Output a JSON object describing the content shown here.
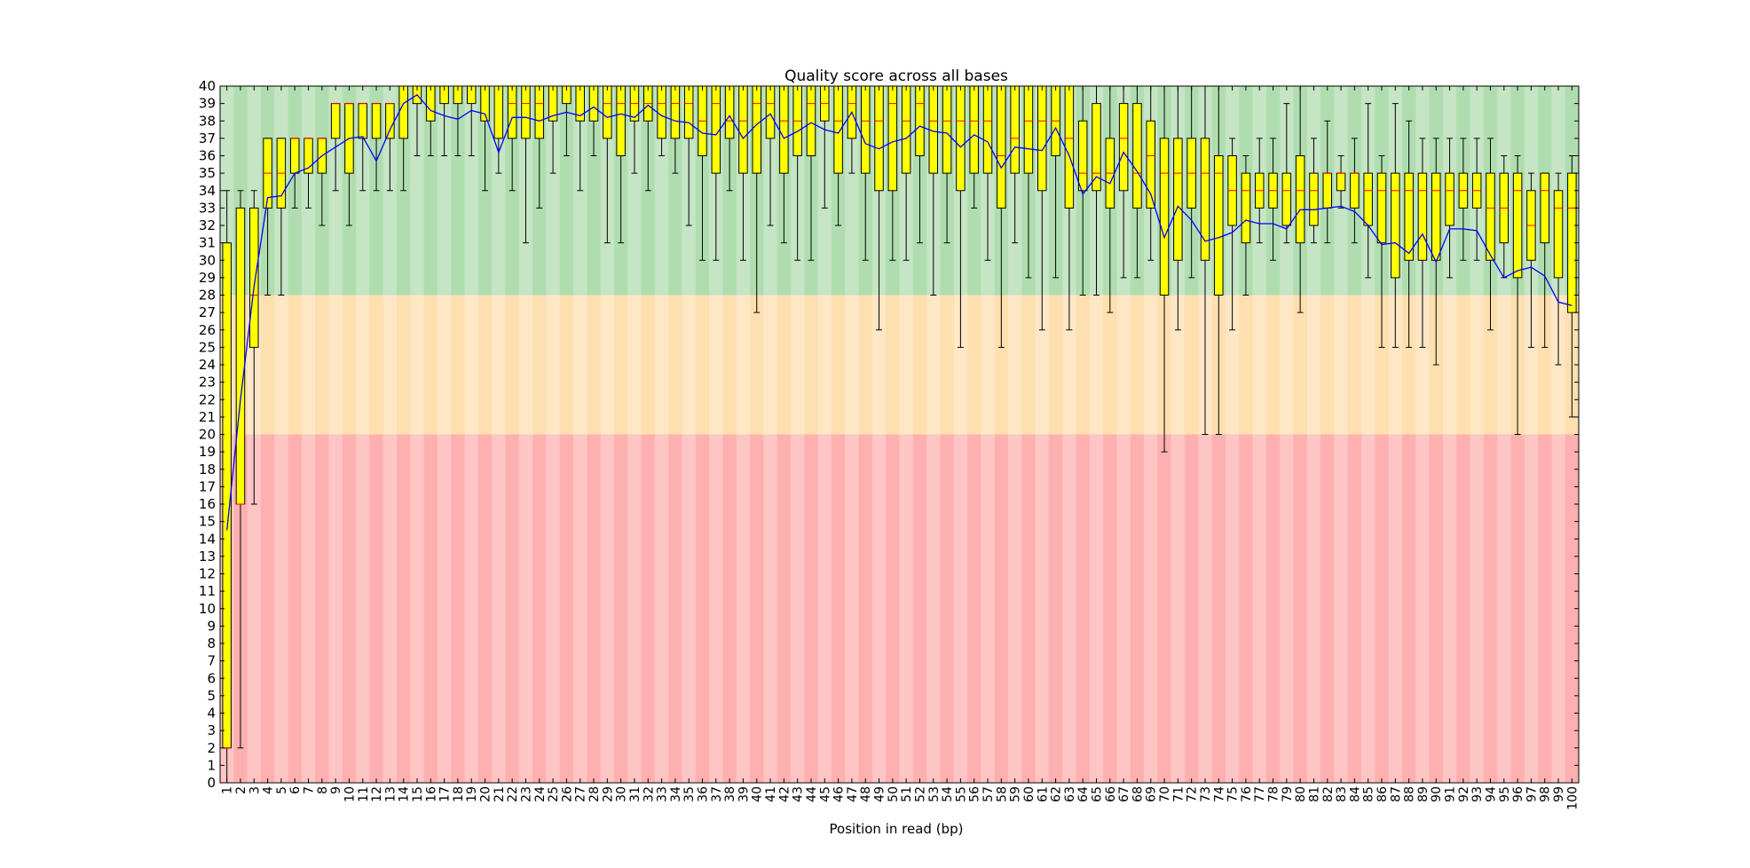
{
  "chart_data": {
    "type": "boxplot",
    "title": "Quality score across all bases",
    "xlabel": "Position in read (bp)",
    "ylabel": "",
    "ylim": [
      0,
      40
    ],
    "y_ticks": [
      0,
      1,
      2,
      3,
      4,
      5,
      6,
      7,
      8,
      9,
      10,
      11,
      12,
      13,
      14,
      15,
      16,
      17,
      18,
      19,
      20,
      21,
      22,
      23,
      24,
      25,
      26,
      27,
      28,
      29,
      30,
      31,
      32,
      33,
      34,
      35,
      36,
      37,
      38,
      39,
      40
    ],
    "quality_zones": [
      {
        "from": 28,
        "to": 40,
        "colors": [
          "#c5e5c5",
          "#b0ddb0"
        ]
      },
      {
        "from": 20,
        "to": 28,
        "colors": [
          "#fee7c5",
          "#fedfb0"
        ]
      },
      {
        "from": 0,
        "to": 20,
        "colors": [
          "#fec5c5",
          "#feb0b0"
        ]
      }
    ],
    "colors": {
      "box": "#ffff00",
      "median": "#ff0000",
      "mean_line": "#0000ff",
      "whisker": "#000000"
    },
    "x_tick_labels": [
      "1",
      "2",
      "3",
      "4",
      "5",
      "6",
      "7",
      "8",
      "9",
      "10",
      "11",
      "12",
      "13",
      "14",
      "15",
      "16",
      "17",
      "18",
      "19",
      "20",
      "21",
      "22",
      "23",
      "24",
      "25",
      "26",
      "27",
      "28",
      "29",
      "30",
      "31",
      "32",
      "33",
      "34",
      "35",
      "36",
      "37",
      "38",
      "39",
      "40",
      "41",
      "42",
      "43",
      "44",
      "45",
      "46",
      "47",
      "48",
      "49",
      "50",
      "51",
      "52",
      "53",
      "54",
      "55",
      "56",
      "57",
      "58",
      "59",
      "60",
      "61",
      "62",
      "63",
      "64",
      "65",
      "66",
      "67",
      "68",
      "69",
      "70",
      "71",
      "72",
      "73",
      "74",
      "75",
      "76",
      "77",
      "78",
      "79",
      "80",
      "81",
      "82",
      "83",
      "84",
      "85",
      "86",
      "87",
      "88",
      "89",
      "90",
      "91",
      "92",
      "93",
      "94",
      "95",
      "96",
      "97",
      "98",
      "99",
      "100"
    ],
    "positions": [
      {
        "q1": 2,
        "median": 2,
        "q3": 31,
        "whislo": 0,
        "whishi": 34,
        "mean": 14.5
      },
      {
        "q1": 16,
        "median": 16,
        "q3": 33,
        "whislo": 2,
        "whishi": 34,
        "mean": 22
      },
      {
        "q1": 25,
        "median": 28,
        "q3": 33,
        "whislo": 16,
        "whishi": 34,
        "mean": 28.5
      },
      {
        "q1": 33,
        "median": 35,
        "q3": 37,
        "whislo": 28,
        "whishi": 37,
        "mean": 33.6
      },
      {
        "q1": 33,
        "median": 35,
        "q3": 37,
        "whislo": 28,
        "whishi": 37,
        "mean": 33.7
      },
      {
        "q1": 35,
        "median": 37,
        "q3": 37,
        "whislo": 33,
        "whishi": 37,
        "mean": 35
      },
      {
        "q1": 35,
        "median": 37,
        "q3": 37,
        "whislo": 33,
        "whishi": 37,
        "mean": 35.3
      },
      {
        "q1": 35,
        "median": 37,
        "q3": 37,
        "whislo": 32,
        "whishi": 37,
        "mean": 36
      },
      {
        "q1": 37,
        "median": 39,
        "q3": 39,
        "whislo": 34,
        "whishi": 39,
        "mean": 36.5
      },
      {
        "q1": 35,
        "median": 39,
        "q3": 39,
        "whislo": 32,
        "whishi": 39,
        "mean": 37
      },
      {
        "q1": 37,
        "median": 39,
        "q3": 39,
        "whislo": 34,
        "whishi": 39,
        "mean": 37.1
      },
      {
        "q1": 37,
        "median": 39,
        "q3": 39,
        "whislo": 34,
        "whishi": 39,
        "mean": 35.7
      },
      {
        "q1": 37,
        "median": 39,
        "q3": 39,
        "whislo": 34,
        "whishi": 39,
        "mean": 37.5
      },
      {
        "q1": 37,
        "median": 40,
        "q3": 40,
        "whislo": 34,
        "whishi": 40,
        "mean": 39
      },
      {
        "q1": 39,
        "median": 40,
        "q3": 40,
        "whislo": 36,
        "whishi": 40,
        "mean": 39.5
      },
      {
        "q1": 38,
        "median": 40,
        "q3": 40,
        "whislo": 36,
        "whishi": 40,
        "mean": 38.6
      },
      {
        "q1": 39,
        "median": 40,
        "q3": 40,
        "whislo": 36,
        "whishi": 40,
        "mean": 38.3
      },
      {
        "q1": 39,
        "median": 40,
        "q3": 40,
        "whislo": 36,
        "whishi": 40,
        "mean": 38.1
      },
      {
        "q1": 39,
        "median": 40,
        "q3": 40,
        "whislo": 36,
        "whishi": 40,
        "mean": 38.6
      },
      {
        "q1": 38,
        "median": 40,
        "q3": 40,
        "whislo": 34,
        "whishi": 40,
        "mean": 38.4
      },
      {
        "q1": 37,
        "median": 40,
        "q3": 40,
        "whislo": 35,
        "whishi": 40,
        "mean": 36.2
      },
      {
        "q1": 37,
        "median": 39,
        "q3": 40,
        "whislo": 34,
        "whishi": 40,
        "mean": 38.2
      },
      {
        "q1": 37,
        "median": 39,
        "q3": 40,
        "whislo": 31,
        "whishi": 40,
        "mean": 38.2
      },
      {
        "q1": 37,
        "median": 39,
        "q3": 40,
        "whislo": 33,
        "whishi": 40,
        "mean": 38
      },
      {
        "q1": 38,
        "median": 40,
        "q3": 40,
        "whislo": 35,
        "whishi": 40,
        "mean": 38.3
      },
      {
        "q1": 39,
        "median": 40,
        "q3": 40,
        "whislo": 36,
        "whishi": 40,
        "mean": 38.5
      },
      {
        "q1": 38,
        "median": 40,
        "q3": 40,
        "whislo": 34,
        "whishi": 40,
        "mean": 38.3
      },
      {
        "q1": 38,
        "median": 40,
        "q3": 40,
        "whislo": 36,
        "whishi": 40,
        "mean": 38.8
      },
      {
        "q1": 37,
        "median": 39,
        "q3": 40,
        "whislo": 31,
        "whishi": 40,
        "mean": 38.2
      },
      {
        "q1": 36,
        "median": 39,
        "q3": 40,
        "whislo": 31,
        "whishi": 40,
        "mean": 38.4
      },
      {
        "q1": 38,
        "median": 39,
        "q3": 40,
        "whislo": 35,
        "whishi": 40,
        "mean": 38.2
      },
      {
        "q1": 38,
        "median": 39,
        "q3": 40,
        "whislo": 34,
        "whishi": 40,
        "mean": 38.9
      },
      {
        "q1": 37,
        "median": 39,
        "q3": 40,
        "whislo": 36,
        "whishi": 40,
        "mean": 38.3
      },
      {
        "q1": 37,
        "median": 39,
        "q3": 40,
        "whislo": 35,
        "whishi": 40,
        "mean": 38
      },
      {
        "q1": 37,
        "median": 39,
        "q3": 40,
        "whislo": 32,
        "whishi": 40,
        "mean": 37.9
      },
      {
        "q1": 36,
        "median": 38,
        "q3": 40,
        "whislo": 30,
        "whishi": 40,
        "mean": 37.3
      },
      {
        "q1": 35,
        "median": 39,
        "q3": 40,
        "whislo": 30,
        "whishi": 40,
        "mean": 37.2
      },
      {
        "q1": 37,
        "median": 38,
        "q3": 40,
        "whislo": 34,
        "whishi": 40,
        "mean": 38.3
      },
      {
        "q1": 35,
        "median": 38,
        "q3": 40,
        "whislo": 30,
        "whishi": 40,
        "mean": 37
      },
      {
        "q1": 35,
        "median": 39,
        "q3": 40,
        "whislo": 27,
        "whishi": 40,
        "mean": 37.8
      },
      {
        "q1": 37,
        "median": 39,
        "q3": 40,
        "whislo": 32,
        "whishi": 40,
        "mean": 38.4
      },
      {
        "q1": 35,
        "median": 38,
        "q3": 40,
        "whislo": 31,
        "whishi": 40,
        "mean": 37
      },
      {
        "q1": 36,
        "median": 38,
        "q3": 40,
        "whislo": 30,
        "whishi": 40,
        "mean": 37.4
      },
      {
        "q1": 36,
        "median": 39,
        "q3": 40,
        "whislo": 30,
        "whishi": 40,
        "mean": 37.9
      },
      {
        "q1": 38,
        "median": 39,
        "q3": 40,
        "whislo": 33,
        "whishi": 40,
        "mean": 37.5
      },
      {
        "q1": 35,
        "median": 38,
        "q3": 40,
        "whislo": 32,
        "whishi": 40,
        "mean": 37.3
      },
      {
        "q1": 37,
        "median": 39,
        "q3": 40,
        "whislo": 35,
        "whishi": 40,
        "mean": 38.5
      },
      {
        "q1": 35,
        "median": 38,
        "q3": 40,
        "whislo": 30,
        "whishi": 40,
        "mean": 36.7
      },
      {
        "q1": 34,
        "median": 38,
        "q3": 40,
        "whislo": 26,
        "whishi": 40,
        "mean": 36.4
      },
      {
        "q1": 34,
        "median": 39,
        "q3": 40,
        "whislo": 30,
        "whishi": 40,
        "mean": 36.8
      },
      {
        "q1": 35,
        "median": 38,
        "q3": 40,
        "whislo": 30,
        "whishi": 40,
        "mean": 37
      },
      {
        "q1": 36,
        "median": 39,
        "q3": 40,
        "whislo": 31,
        "whishi": 40,
        "mean": 37.7
      },
      {
        "q1": 35,
        "median": 38,
        "q3": 40,
        "whislo": 28,
        "whishi": 40,
        "mean": 37.4
      },
      {
        "q1": 35,
        "median": 38,
        "q3": 40,
        "whislo": 31,
        "whishi": 40,
        "mean": 37.3
      },
      {
        "q1": 34,
        "median": 38,
        "q3": 40,
        "whislo": 25,
        "whishi": 40,
        "mean": 36.5
      },
      {
        "q1": 35,
        "median": 38,
        "q3": 40,
        "whislo": 33,
        "whishi": 40,
        "mean": 37.2
      },
      {
        "q1": 35,
        "median": 38,
        "q3": 40,
        "whislo": 30,
        "whishi": 40,
        "mean": 36.8
      },
      {
        "q1": 33,
        "median": 36,
        "q3": 40,
        "whislo": 25,
        "whishi": 40,
        "mean": 35.3
      },
      {
        "q1": 35,
        "median": 37,
        "q3": 40,
        "whislo": 31,
        "whishi": 40,
        "mean": 36.5
      },
      {
        "q1": 35,
        "median": 38,
        "q3": 40,
        "whislo": 29,
        "whishi": 40,
        "mean": 36.4
      },
      {
        "q1": 34,
        "median": 38,
        "q3": 40,
        "whislo": 26,
        "whishi": 40,
        "mean": 36.3
      },
      {
        "q1": 36,
        "median": 38,
        "q3": 40,
        "whislo": 29,
        "whishi": 40,
        "mean": 37.6
      },
      {
        "q1": 33,
        "median": 37,
        "q3": 40,
        "whislo": 26,
        "whishi": 40,
        "mean": 36
      },
      {
        "q1": 34,
        "median": 35,
        "q3": 38,
        "whislo": 28,
        "whishi": 40,
        "mean": 33.8
      },
      {
        "q1": 34,
        "median": 35,
        "q3": 39,
        "whislo": 28,
        "whishi": 40,
        "mean": 34.8
      },
      {
        "q1": 33,
        "median": 35,
        "q3": 37,
        "whislo": 27,
        "whishi": 40,
        "mean": 34.4
      },
      {
        "q1": 34,
        "median": 37,
        "q3": 39,
        "whislo": 29,
        "whishi": 40,
        "mean": 36.2
      },
      {
        "q1": 33,
        "median": 35,
        "q3": 39,
        "whislo": 29,
        "whishi": 40,
        "mean": 35.1
      },
      {
        "q1": 33,
        "median": 36,
        "q3": 38,
        "whislo": 30,
        "whishi": 40,
        "mean": 33.8
      },
      {
        "q1": 28,
        "median": 35,
        "q3": 37,
        "whislo": 19,
        "whishi": 40,
        "mean": 31.3
      },
      {
        "q1": 30,
        "median": 35,
        "q3": 37,
        "whislo": 26,
        "whishi": 40,
        "mean": 33.1
      },
      {
        "q1": 33,
        "median": 35,
        "q3": 37,
        "whislo": 29,
        "whishi": 40,
        "mean": 32.3
      },
      {
        "q1": 30,
        "median": 35,
        "q3": 37,
        "whislo": 20,
        "whishi": 40,
        "mean": 31.1
      },
      {
        "q1": 28,
        "median": 35,
        "q3": 36,
        "whislo": 20,
        "whishi": 40,
        "mean": 31.3
      },
      {
        "q1": 32,
        "median": 34,
        "q3": 36,
        "whislo": 26,
        "whishi": 37,
        "mean": 31.6
      },
      {
        "q1": 31,
        "median": 34,
        "q3": 35,
        "whislo": 28,
        "whishi": 36,
        "mean": 32.3
      },
      {
        "q1": 33,
        "median": 34,
        "q3": 35,
        "whislo": 31,
        "whishi": 37,
        "mean": 32.1
      },
      {
        "q1": 33,
        "median": 34,
        "q3": 35,
        "whislo": 30,
        "whishi": 37,
        "mean": 32.1
      },
      {
        "q1": 32,
        "median": 34,
        "q3": 35,
        "whislo": 31,
        "whishi": 39,
        "mean": 31.8
      },
      {
        "q1": 31,
        "median": 34,
        "q3": 36,
        "whislo": 27,
        "whishi": 40,
        "mean": 32.9
      },
      {
        "q1": 32,
        "median": 34,
        "q3": 35,
        "whislo": 31,
        "whishi": 37,
        "mean": 32.9
      },
      {
        "q1": 33,
        "median": 35,
        "q3": 35,
        "whislo": 31,
        "whishi": 38,
        "mean": 33
      },
      {
        "q1": 34,
        "median": 35,
        "q3": 35,
        "whislo": 33,
        "whishi": 36,
        "mean": 33.1
      },
      {
        "q1": 33,
        "median": 35,
        "q3": 35,
        "whislo": 31,
        "whishi": 37,
        "mean": 32.8
      },
      {
        "q1": 32,
        "median": 34,
        "q3": 35,
        "whislo": 29,
        "whishi": 39,
        "mean": 32
      },
      {
        "q1": 31,
        "median": 34,
        "q3": 35,
        "whislo": 25,
        "whishi": 36,
        "mean": 30.9
      },
      {
        "q1": 29,
        "median": 34,
        "q3": 35,
        "whislo": 25,
        "whishi": 39,
        "mean": 31
      },
      {
        "q1": 30,
        "median": 34,
        "q3": 35,
        "whislo": 25,
        "whishi": 38,
        "mean": 30.4
      },
      {
        "q1": 30,
        "median": 34,
        "q3": 35,
        "whislo": 25,
        "whishi": 37,
        "mean": 31.5
      },
      {
        "q1": 30,
        "median": 34,
        "q3": 35,
        "whislo": 24,
        "whishi": 37,
        "mean": 29.9
      },
      {
        "q1": 32,
        "median": 34,
        "q3": 35,
        "whislo": 29,
        "whishi": 37,
        "mean": 31.8
      },
      {
        "q1": 33,
        "median": 34,
        "q3": 35,
        "whislo": 30,
        "whishi": 37,
        "mean": 31.8
      },
      {
        "q1": 33,
        "median": 34,
        "q3": 35,
        "whislo": 30,
        "whishi": 37,
        "mean": 31.7
      },
      {
        "q1": 30,
        "median": 33,
        "q3": 35,
        "whislo": 26,
        "whishi": 37,
        "mean": 30.3
      },
      {
        "q1": 31,
        "median": 33,
        "q3": 35,
        "whislo": 29,
        "whishi": 36,
        "mean": 29
      },
      {
        "q1": 29,
        "median": 34,
        "q3": 35,
        "whislo": 20,
        "whishi": 36,
        "mean": 29.4
      },
      {
        "q1": 30,
        "median": 32,
        "q3": 34,
        "whislo": 25,
        "whishi": 35,
        "mean": 29.6
      },
      {
        "q1": 31,
        "median": 34,
        "q3": 35,
        "whislo": 25,
        "whishi": 35,
        "mean": 29.1
      },
      {
        "q1": 29,
        "median": 33,
        "q3": 34,
        "whislo": 24,
        "whishi": 35,
        "mean": 27.6
      },
      {
        "q1": 27,
        "median": 33,
        "q3": 35,
        "whislo": 21,
        "whishi": 36,
        "mean": 27.4
      }
    ]
  }
}
